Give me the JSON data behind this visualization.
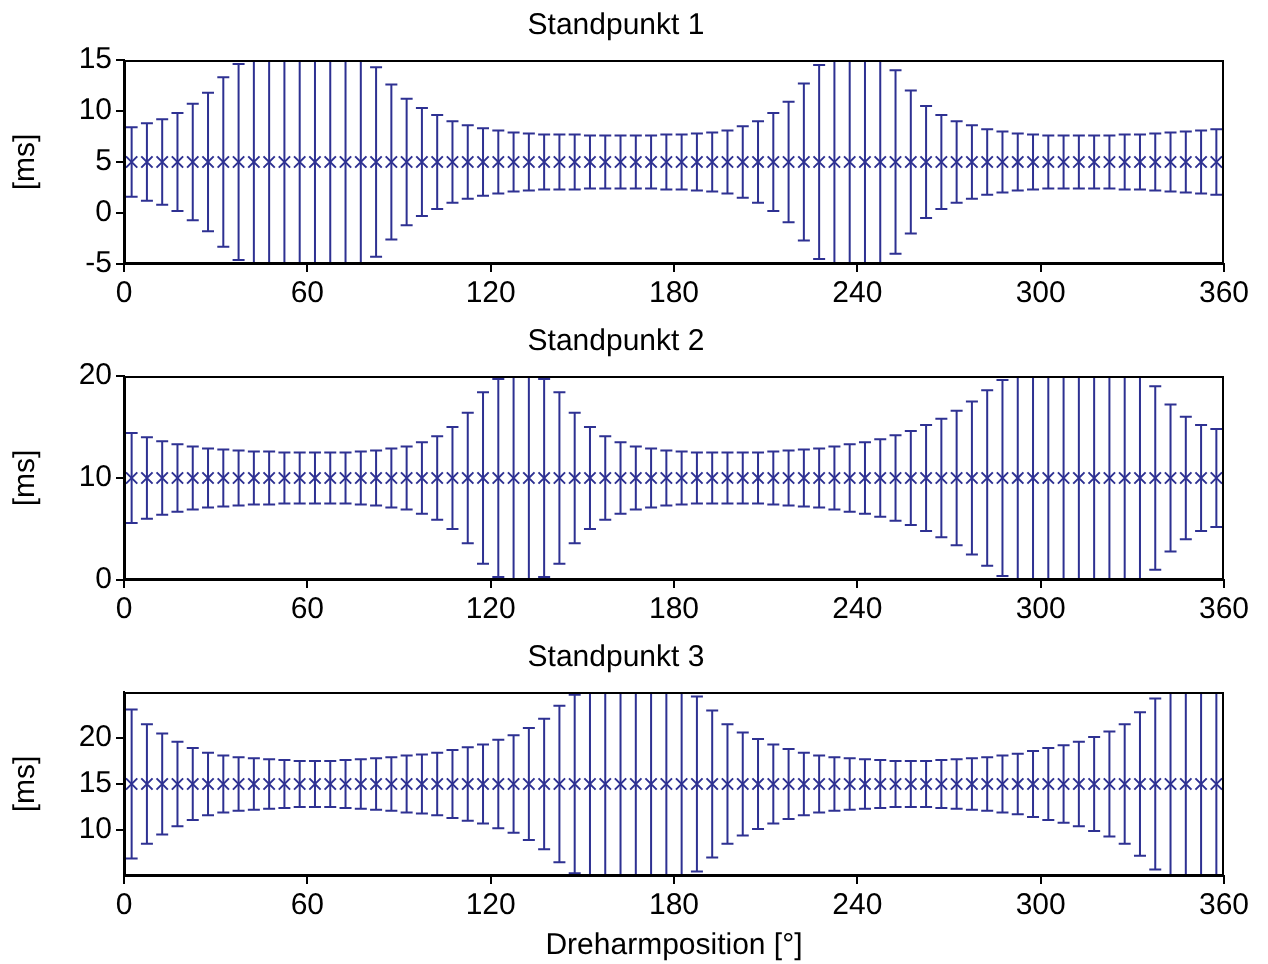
{
  "chart_data": [
    {
      "type": "scatter",
      "title": "Standpunkt 1",
      "ylabel": "[ms]",
      "marker": "cross",
      "grid": false,
      "legend": false,
      "x": [
        2.5,
        7.5,
        12.5,
        17.5,
        22.5,
        27.5,
        32.5,
        37.5,
        42.5,
        47.5,
        52.5,
        57.5,
        62.5,
        67.5,
        72.5,
        77.5,
        82.5,
        87.5,
        92.5,
        97.5,
        102.5,
        107.5,
        112.5,
        117.5,
        122.5,
        127.5,
        132.5,
        137.5,
        142.5,
        147.5,
        152.5,
        157.5,
        162.5,
        167.5,
        172.5,
        177.5,
        182.5,
        187.5,
        192.5,
        197.5,
        202.5,
        207.5,
        212.5,
        217.5,
        222.5,
        227.5,
        232.5,
        237.5,
        242.5,
        247.5,
        252.5,
        257.5,
        262.5,
        267.5,
        272.5,
        277.5,
        282.5,
        287.5,
        292.5,
        297.5,
        302.5,
        307.5,
        312.5,
        317.5,
        322.5,
        327.5,
        332.5,
        337.5,
        342.5,
        347.5,
        352.5,
        357.5
      ],
      "series": [
        {
          "color": "#2e3192",
          "values": [
            5,
            5,
            5,
            5,
            5,
            5,
            5,
            5,
            5,
            5,
            5,
            5,
            5,
            5,
            5,
            5,
            5,
            5,
            5,
            5,
            5,
            5,
            5,
            5,
            5,
            5,
            5,
            5,
            5,
            5,
            5,
            5,
            5,
            5,
            5,
            5,
            5,
            5,
            5,
            5,
            5,
            5,
            5,
            5,
            5,
            5,
            5,
            5,
            5,
            5,
            5,
            5,
            5,
            5,
            5,
            5,
            5,
            5,
            5,
            5,
            5,
            5,
            5,
            5,
            5,
            5,
            5,
            5,
            5,
            5,
            5,
            5
          ],
          "errors": [
            3.4,
            3.8,
            4.2,
            4.8,
            5.7,
            6.8,
            8.3,
            9.6,
            10,
            10,
            10,
            10,
            10,
            10,
            10,
            10,
            9.3,
            7.6,
            6.2,
            5.3,
            4.6,
            4.0,
            3.6,
            3.3,
            3.1,
            2.9,
            2.8,
            2.7,
            2.7,
            2.7,
            2.6,
            2.6,
            2.6,
            2.6,
            2.6,
            2.7,
            2.7,
            2.8,
            2.9,
            3.1,
            3.5,
            4.0,
            4.8,
            5.9,
            7.7,
            9.5,
            10,
            10,
            10,
            10,
            9,
            7,
            5.5,
            4.6,
            4.0,
            3.6,
            3.2,
            3.0,
            2.8,
            2.7,
            2.6,
            2.6,
            2.6,
            2.6,
            2.6,
            2.7,
            2.7,
            2.8,
            2.9,
            3.0,
            3.1,
            3.2
          ]
        }
      ],
      "xlim": [
        0,
        360
      ],
      "xticks": [
        0,
        60,
        120,
        180,
        240,
        300,
        360
      ],
      "ylim": [
        -5,
        15
      ],
      "yticks": [
        -5,
        0,
        5,
        10,
        15
      ]
    },
    {
      "type": "scatter",
      "title": "Standpunkt 2",
      "ylabel": "[ms]",
      "marker": "cross",
      "grid": false,
      "legend": false,
      "x": [
        2.5,
        7.5,
        12.5,
        17.5,
        22.5,
        27.5,
        32.5,
        37.5,
        42.5,
        47.5,
        52.5,
        57.5,
        62.5,
        67.5,
        72.5,
        77.5,
        82.5,
        87.5,
        92.5,
        97.5,
        102.5,
        107.5,
        112.5,
        117.5,
        122.5,
        127.5,
        132.5,
        137.5,
        142.5,
        147.5,
        152.5,
        157.5,
        162.5,
        167.5,
        172.5,
        177.5,
        182.5,
        187.5,
        192.5,
        197.5,
        202.5,
        207.5,
        212.5,
        217.5,
        222.5,
        227.5,
        232.5,
        237.5,
        242.5,
        247.5,
        252.5,
        257.5,
        262.5,
        267.5,
        272.5,
        277.5,
        282.5,
        287.5,
        292.5,
        297.5,
        302.5,
        307.5,
        312.5,
        317.5,
        322.5,
        327.5,
        332.5,
        337.5,
        342.5,
        347.5,
        352.5,
        357.5
      ],
      "series": [
        {
          "color": "#2e3192",
          "values": [
            10,
            10,
            10,
            10,
            10,
            10,
            10,
            10,
            10,
            10,
            10,
            10,
            10,
            10,
            10,
            10,
            10,
            10,
            10,
            10,
            10,
            10,
            10,
            10,
            10,
            10,
            10,
            10,
            10,
            10,
            10,
            10,
            10,
            10,
            10,
            10,
            10,
            10,
            10,
            10,
            10,
            10,
            10,
            10,
            10,
            10,
            10,
            10,
            10,
            10,
            10,
            10,
            10,
            10,
            10,
            10,
            10,
            10,
            10,
            10,
            10,
            10,
            10,
            10,
            10,
            10,
            10,
            10,
            10,
            10,
            10,
            10
          ],
          "errors": [
            4.4,
            4.0,
            3.6,
            3.3,
            3.1,
            2.9,
            2.8,
            2.7,
            2.6,
            2.6,
            2.5,
            2.5,
            2.5,
            2.5,
            2.5,
            2.6,
            2.7,
            2.9,
            3.1,
            3.5,
            4.1,
            5.0,
            6.4,
            8.4,
            9.7,
            10,
            10,
            9.7,
            8.4,
            6.4,
            5.0,
            4.1,
            3.5,
            3.1,
            2.9,
            2.7,
            2.6,
            2.5,
            2.5,
            2.5,
            2.5,
            2.5,
            2.6,
            2.7,
            2.8,
            2.9,
            3.1,
            3.3,
            3.5,
            3.8,
            4.2,
            4.6,
            5.2,
            5.8,
            6.6,
            7.5,
            8.6,
            9.6,
            10,
            10,
            10,
            10,
            10,
            10,
            10,
            10,
            10,
            9,
            7.2,
            6.0,
            5.2,
            4.8
          ]
        }
      ],
      "xlim": [
        0,
        360
      ],
      "xticks": [
        0,
        60,
        120,
        180,
        240,
        300,
        360
      ],
      "ylim": [
        0,
        20
      ],
      "yticks": [
        0,
        10,
        20
      ]
    },
    {
      "type": "scatter",
      "title": "Standpunkt 3",
      "xlabel": "Dreharmposition [°]",
      "ylabel": "[ms]",
      "marker": "cross",
      "grid": false,
      "legend": false,
      "x": [
        2.5,
        7.5,
        12.5,
        17.5,
        22.5,
        27.5,
        32.5,
        37.5,
        42.5,
        47.5,
        52.5,
        57.5,
        62.5,
        67.5,
        72.5,
        77.5,
        82.5,
        87.5,
        92.5,
        97.5,
        102.5,
        107.5,
        112.5,
        117.5,
        122.5,
        127.5,
        132.5,
        137.5,
        142.5,
        147.5,
        152.5,
        157.5,
        162.5,
        167.5,
        172.5,
        177.5,
        182.5,
        187.5,
        192.5,
        197.5,
        202.5,
        207.5,
        212.5,
        217.5,
        222.5,
        227.5,
        232.5,
        237.5,
        242.5,
        247.5,
        252.5,
        257.5,
        262.5,
        267.5,
        272.5,
        277.5,
        282.5,
        287.5,
        292.5,
        297.5,
        302.5,
        307.5,
        312.5,
        317.5,
        322.5,
        327.5,
        332.5,
        337.5,
        342.5,
        347.5,
        352.5,
        357.5
      ],
      "series": [
        {
          "color": "#2e3192",
          "values": [
            15,
            15,
            15,
            15,
            15,
            15,
            15,
            15,
            15,
            15,
            15,
            15,
            15,
            15,
            15,
            15,
            15,
            15,
            15,
            15,
            15,
            15,
            15,
            15,
            15,
            15,
            15,
            15,
            15,
            15,
            15,
            15,
            15,
            15,
            15,
            15,
            15,
            15,
            15,
            15,
            15,
            15,
            15,
            15,
            15,
            15,
            15,
            15,
            15,
            15,
            15,
            15,
            15,
            15,
            15,
            15,
            15,
            15,
            15,
            15,
            15,
            15,
            15,
            15,
            15,
            15,
            15,
            15,
            15,
            15,
            15,
            15
          ],
          "errors": [
            8.1,
            6.5,
            5.5,
            4.6,
            3.9,
            3.4,
            3.1,
            2.9,
            2.8,
            2.7,
            2.6,
            2.5,
            2.5,
            2.5,
            2.6,
            2.7,
            2.8,
            2.9,
            3.1,
            3.2,
            3.4,
            3.7,
            4.0,
            4.3,
            4.8,
            5.3,
            6.1,
            7.1,
            8.5,
            9.7,
            10,
            10,
            10,
            10,
            10,
            10,
            10,
            9.5,
            8,
            6.5,
            5.6,
            4.9,
            4.3,
            3.8,
            3.4,
            3.1,
            2.9,
            2.8,
            2.7,
            2.6,
            2.5,
            2.5,
            2.5,
            2.6,
            2.7,
            2.8,
            2.9,
            3.1,
            3.3,
            3.6,
            3.9,
            4.2,
            4.6,
            5.1,
            5.7,
            6.5,
            7.8,
            9.3,
            10,
            10,
            10,
            10
          ]
        }
      ],
      "xlim": [
        0,
        360
      ],
      "xticks": [
        0,
        60,
        120,
        180,
        240,
        300,
        360
      ],
      "ylim": [
        5,
        25
      ],
      "yticks": [
        10,
        15,
        20
      ]
    }
  ]
}
